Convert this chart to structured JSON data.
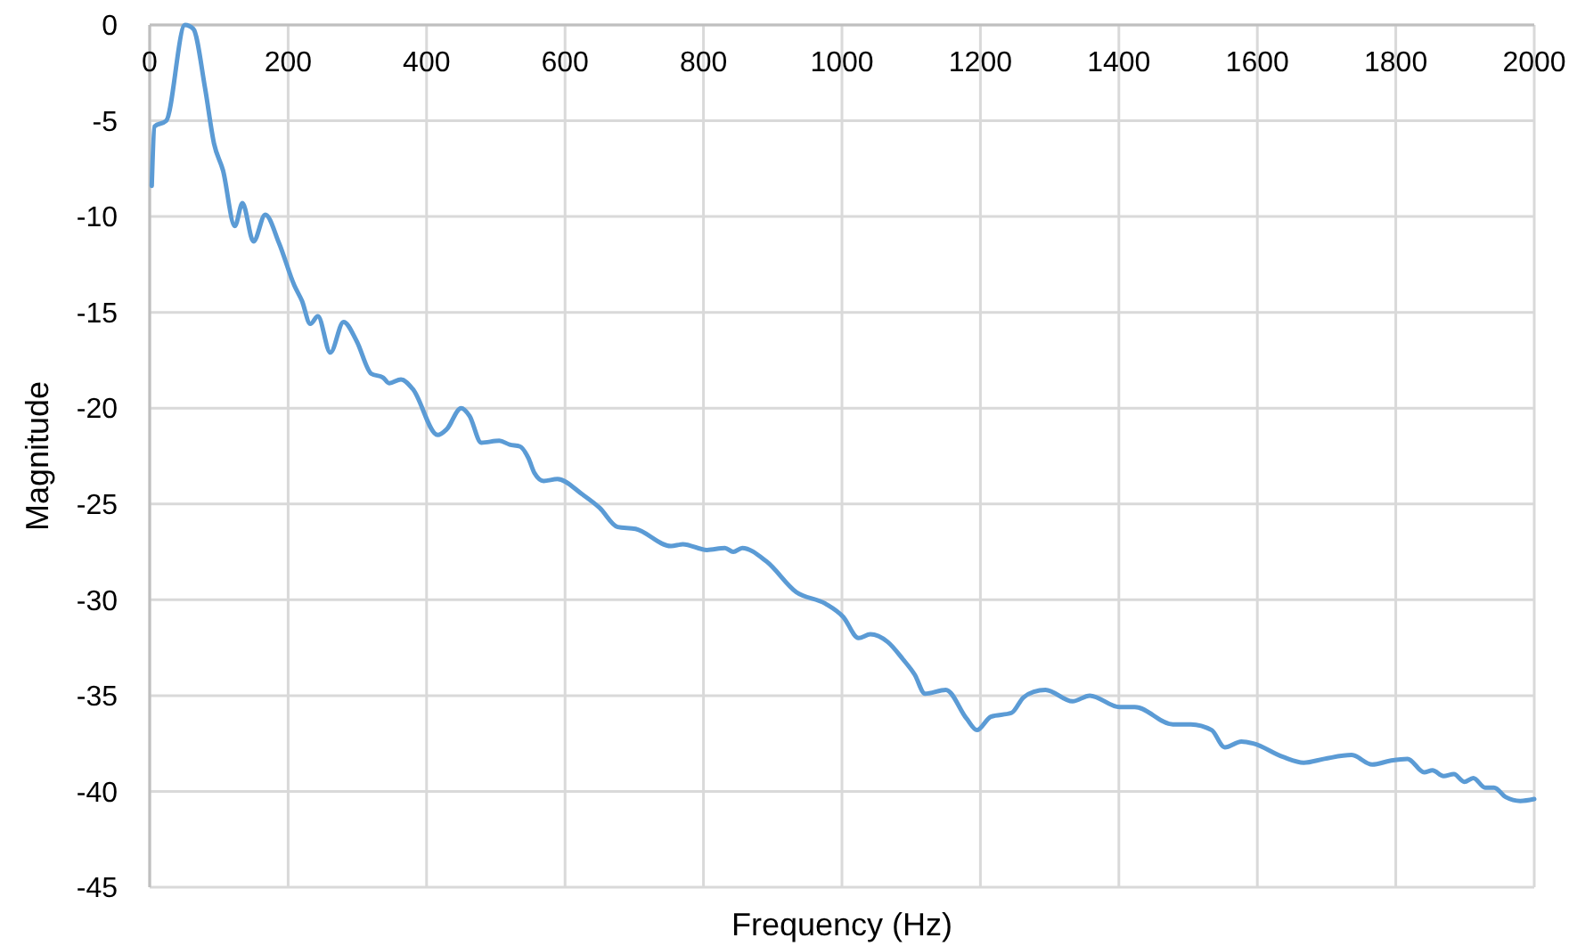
{
  "chart_data": {
    "type": "line",
    "xlabel": "Frequency (Hz)",
    "ylabel": "Magnitude",
    "xlim": [
      0,
      2000
    ],
    "ylim": [
      -45,
      0
    ],
    "xticks": [
      0,
      200,
      400,
      600,
      800,
      1000,
      1200,
      1400,
      1600,
      1800,
      2000
    ],
    "yticks": [
      0,
      -5,
      -10,
      -15,
      -20,
      -25,
      -30,
      -35,
      -40,
      -45
    ],
    "grid": true,
    "marker": "none",
    "line_style": "solid",
    "series": [
      {
        "color": "#5b9bd5",
        "x": [
          3,
          7,
          24,
          51,
          63,
          80,
          93,
          106,
          123,
          134,
          150,
          167,
          187,
          209,
          220,
          232,
          243,
          261,
          280,
          299,
          320,
          337,
          346,
          363,
          380,
          416,
          429,
          450,
          462,
          479,
          505,
          520,
          535,
          547,
          556,
          569,
          589,
          625,
          650,
          676,
          702,
          753,
          770,
          805,
          831,
          843,
          856,
          891,
          934,
          976,
          1002,
          1024,
          1041,
          1066,
          1088,
          1105,
          1120,
          1150,
          1180,
          1195,
          1215,
          1245,
          1262,
          1277,
          1294,
          1333,
          1358,
          1401,
          1423,
          1478,
          1504,
          1534,
          1553,
          1577,
          1594,
          1637,
          1667,
          1697,
          1736,
          1766,
          1792,
          1817,
          1841,
          1853,
          1869,
          1884,
          1899,
          1912,
          1929,
          1942,
          1959,
          1980,
          2000
        ],
        "values": [
          -8.4,
          -5.3,
          -5.0,
          0,
          -0.2,
          -3.3,
          -6.2,
          -7.6,
          -10.5,
          -9.3,
          -11.3,
          -9.9,
          -11.4,
          -13.6,
          -14.4,
          -15.6,
          -15.2,
          -17.1,
          -15.5,
          -16.5,
          -18.2,
          -18.4,
          -18.7,
          -18.5,
          -19.0,
          -21.4,
          -21.1,
          -20.0,
          -20.4,
          -21.8,
          -21.7,
          -21.9,
          -22.0,
          -22.6,
          -23.4,
          -23.8,
          -23.7,
          -24.5,
          -25.2,
          -26.2,
          -26.3,
          -27.2,
          -27.1,
          -27.4,
          -27.3,
          -27.5,
          -27.3,
          -28.0,
          -29.6,
          -30.2,
          -30.9,
          -32.0,
          -31.8,
          -32.2,
          -33.1,
          -33.9,
          -34.9,
          -34.7,
          -36.2,
          -36.8,
          -36.1,
          -35.9,
          -35.1,
          -34.8,
          -34.7,
          -35.3,
          -35.0,
          -35.6,
          -35.6,
          -36.5,
          -36.5,
          -36.8,
          -37.7,
          -37.4,
          -37.5,
          -38.2,
          -38.5,
          -38.3,
          -38.1,
          -38.6,
          -38.4,
          -38.3,
          -39.0,
          -38.9,
          -39.2,
          -39.1,
          -39.5,
          -39.3,
          -39.8,
          -39.8,
          -40.3,
          -40.5,
          -40.4
        ]
      }
    ]
  }
}
